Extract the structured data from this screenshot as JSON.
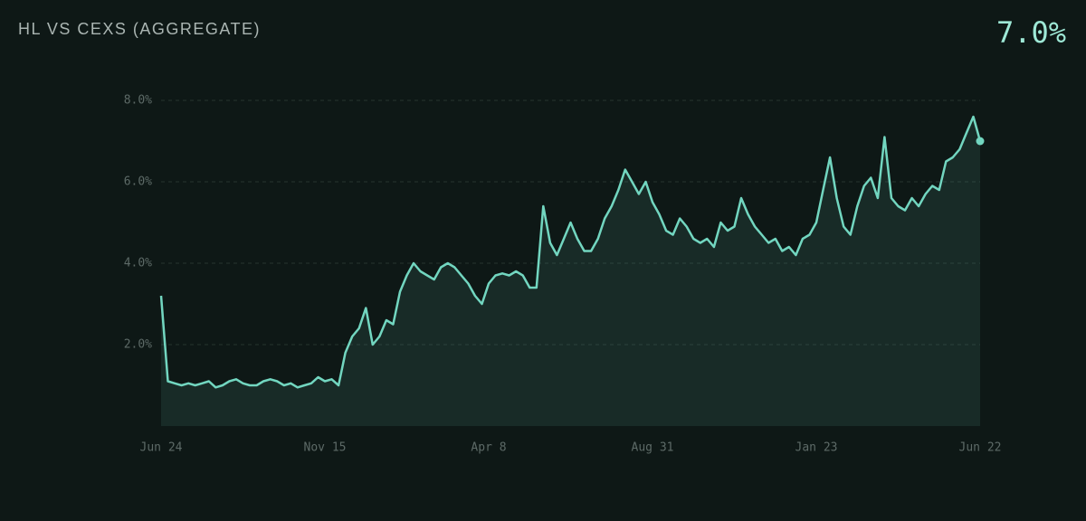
{
  "chart_data": {
    "type": "area",
    "title": "HL VS CEXS (AGGREGATE)",
    "current": {
      "value": 7.0,
      "label": "7.0%"
    },
    "categories": [
      "Jun 24",
      null,
      null,
      null,
      null,
      null,
      null,
      null,
      null,
      null,
      null,
      null,
      null,
      null,
      null,
      null,
      null,
      null,
      null,
      null,
      null,
      null,
      null,
      null,
      "Nov 15",
      null,
      null,
      null,
      null,
      null,
      null,
      null,
      null,
      null,
      null,
      null,
      null,
      null,
      null,
      null,
      null,
      null,
      null,
      null,
      null,
      null,
      null,
      null,
      "Apr 8",
      null,
      null,
      null,
      null,
      null,
      null,
      null,
      null,
      null,
      null,
      null,
      null,
      null,
      null,
      null,
      null,
      null,
      null,
      null,
      null,
      null,
      null,
      null,
      "Aug 31",
      null,
      null,
      null,
      null,
      null,
      null,
      null,
      null,
      null,
      null,
      null,
      null,
      null,
      null,
      null,
      null,
      null,
      null,
      null,
      null,
      null,
      null,
      null,
      "Jan 23",
      null,
      null,
      null,
      null,
      null,
      null,
      null,
      null,
      null,
      null,
      null,
      null,
      null,
      null,
      null,
      null,
      null,
      null,
      null,
      null,
      null,
      null,
      null,
      "Jun 22"
    ],
    "series": [
      {
        "color": "#72d6c0",
        "values": [
          3.2,
          1.1,
          1.05,
          1.0,
          1.05,
          1.0,
          1.05,
          1.1,
          0.95,
          1.0,
          1.1,
          1.15,
          1.05,
          1.0,
          1.0,
          1.1,
          1.15,
          1.1,
          1.0,
          1.05,
          0.95,
          1.0,
          1.05,
          1.2,
          1.1,
          1.15,
          1.0,
          1.8,
          2.2,
          2.4,
          2.9,
          2.0,
          2.2,
          2.6,
          2.5,
          3.3,
          3.7,
          4.0,
          3.8,
          3.7,
          3.6,
          3.9,
          4.0,
          3.9,
          3.7,
          3.5,
          3.2,
          3.0,
          3.5,
          3.7,
          3.75,
          3.7,
          3.8,
          3.7,
          3.4,
          3.4,
          5.4,
          4.5,
          4.2,
          4.6,
          5.0,
          4.6,
          4.3,
          4.3,
          4.6,
          5.1,
          5.4,
          5.8,
          6.3,
          6.0,
          5.7,
          6.0,
          5.5,
          5.2,
          4.8,
          4.7,
          5.1,
          4.9,
          4.6,
          4.5,
          4.6,
          4.4,
          5.0,
          4.8,
          4.9,
          5.6,
          5.2,
          4.9,
          4.7,
          4.5,
          4.6,
          4.3,
          4.4,
          4.2,
          4.6,
          4.7,
          5.0,
          5.8,
          6.6,
          5.6,
          4.9,
          4.7,
          5.4,
          5.9,
          6.1,
          5.6,
          7.1,
          5.6,
          5.4,
          5.3,
          5.6,
          5.4,
          5.7,
          5.9,
          5.8,
          6.5,
          6.6,
          6.8,
          7.2,
          7.6,
          7.0
        ]
      }
    ],
    "ylim": [
      0,
      8
    ],
    "yticks": [
      {
        "value": 2,
        "label": "2.0%"
      },
      {
        "value": 4,
        "label": "4.0%"
      },
      {
        "value": 6,
        "label": "6.0%"
      },
      {
        "value": 8,
        "label": "8.0%"
      }
    ],
    "grid": true
  }
}
